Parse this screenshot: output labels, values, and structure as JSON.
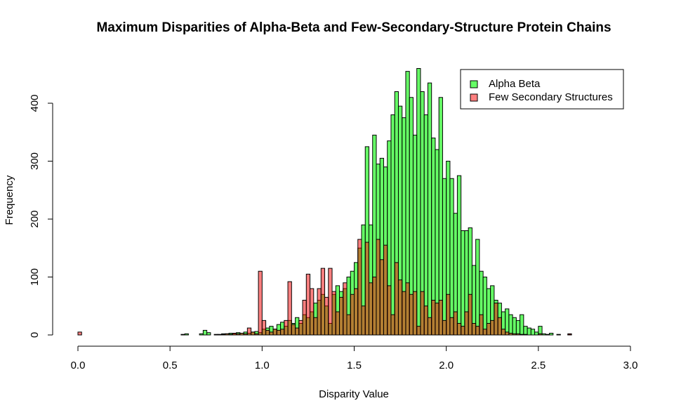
{
  "chart_data": {
    "type": "histogram",
    "title": "Maximum Disparities of Alpha-Beta and Few-Secondary-Structure Protein Chains",
    "xlabel": "Disparity Value",
    "ylabel": "Frequency",
    "bins": [
      0,
      0.02,
      0.04,
      0.06,
      0.08,
      0.1,
      0.12,
      0.14,
      0.16,
      0.18,
      0.2,
      0.22,
      0.24,
      0.26,
      0.28,
      0.3,
      0.32,
      0.34,
      0.36,
      0.38,
      0.4,
      0.42,
      0.44,
      0.46,
      0.48,
      0.5,
      0.52,
      0.54,
      0.56,
      0.58,
      0.6,
      0.62,
      0.64,
      0.66,
      0.68,
      0.7,
      0.72,
      0.74,
      0.76,
      0.78,
      0.8,
      0.82,
      0.84,
      0.86,
      0.88,
      0.9,
      0.92,
      0.94,
      0.96,
      0.98,
      1,
      1.02,
      1.04,
      1.06,
      1.08,
      1.1,
      1.12,
      1.14,
      1.16,
      1.18,
      1.2,
      1.22,
      1.24,
      1.26,
      1.28,
      1.3,
      1.32,
      1.34,
      1.36,
      1.38,
      1.4,
      1.42,
      1.44,
      1.46,
      1.48,
      1.5,
      1.52,
      1.54,
      1.56,
      1.58,
      1.6,
      1.62,
      1.64,
      1.66,
      1.68,
      1.7,
      1.72,
      1.74,
      1.76,
      1.78,
      1.8,
      1.82,
      1.84,
      1.86,
      1.88,
      1.9,
      1.92,
      1.94,
      1.96,
      1.98,
      2,
      2.02,
      2.04,
      2.06,
      2.08,
      2.1,
      2.12,
      2.14,
      2.16,
      2.18,
      2.2,
      2.22,
      2.24,
      2.26,
      2.28,
      2.3,
      2.32,
      2.34,
      2.36,
      2.38,
      2.4,
      2.42,
      2.44,
      2.46,
      2.48,
      2.5,
      2.52,
      2.54,
      2.56,
      2.58,
      2.6,
      2.62,
      2.64,
      2.66,
      2.68,
      2.7
    ],
    "series": [
      {
        "name": "Alpha Beta",
        "color": "#00ff00",
        "values": [
          0,
          0,
          0,
          0,
          0,
          0,
          0,
          0,
          0,
          0,
          0,
          0,
          0,
          0,
          0,
          0,
          0,
          0,
          0,
          0,
          0,
          0,
          0,
          0,
          0,
          0,
          0,
          0,
          1,
          2,
          0,
          0,
          0,
          2,
          8,
          4,
          0,
          1,
          1,
          2,
          2,
          3,
          2,
          4,
          3,
          5,
          3,
          5,
          6,
          4,
          10,
          12,
          15,
          10,
          18,
          22,
          15,
          25,
          20,
          30,
          20,
          35,
          30,
          40,
          55,
          60,
          70,
          50,
          20,
          70,
          85,
          75,
          80,
          100,
          110,
          125,
          150,
          190,
          325,
          190,
          345,
          295,
          305,
          290,
          335,
          380,
          420,
          395,
          375,
          455,
          410,
          345,
          460,
          420,
          380,
          435,
          340,
          320,
          410,
          270,
          300,
          270,
          210,
          275,
          180,
          180,
          185,
          120,
          165,
          110,
          100,
          80,
          85,
          60,
          55,
          40,
          45,
          35,
          30,
          25,
          35,
          15,
          12,
          10,
          5,
          15,
          2,
          1,
          3,
          0,
          0,
          0,
          0,
          1,
          0
        ]
      },
      {
        "name": "Few Secondary Structures",
        "color": "#ff0000",
        "values": [
          5,
          0,
          0,
          0,
          0,
          0,
          0,
          0,
          0,
          0,
          0,
          0,
          0,
          0,
          0,
          0,
          0,
          0,
          0,
          0,
          0,
          0,
          0,
          0,
          0,
          0,
          0,
          0,
          0,
          0,
          0,
          0,
          0,
          0,
          0,
          0,
          0,
          0,
          0,
          1,
          2,
          1,
          3,
          2,
          3,
          2,
          12,
          5,
          2,
          110,
          25,
          8,
          5,
          10,
          8,
          10,
          25,
          92,
          18,
          12,
          25,
          60,
          105,
          80,
          30,
          80,
          115,
          65,
          115,
          75,
          40,
          65,
          90,
          35,
          70,
          80,
          165,
          50,
          160,
          90,
          100,
          165,
          130,
          155,
          85,
          35,
          125,
          95,
          75,
          90,
          70,
          75,
          15,
          75,
          50,
          30,
          60,
          55,
          60,
          25,
          70,
          30,
          40,
          20,
          15,
          40,
          70,
          20,
          15,
          35,
          10,
          20,
          25,
          55,
          30,
          10,
          5,
          3,
          2,
          2,
          1,
          1,
          0,
          0,
          0,
          2,
          0,
          0,
          0,
          0,
          1,
          0,
          0,
          2,
          0
        ]
      }
    ],
    "xlim": [
      0,
      3
    ],
    "xticks": [
      {
        "value": 0,
        "label": "0.0"
      },
      0.5,
      {
        "value": 1,
        "label": "1.0"
      },
      1.5,
      {
        "value": 2,
        "label": "2.0"
      },
      2.5,
      {
        "value": 3,
        "label": "3.0"
      }
    ],
    "ylim": [
      0,
      480
    ],
    "yticks": [
      0,
      100,
      200,
      300,
      400
    ],
    "legend": "top-right"
  }
}
